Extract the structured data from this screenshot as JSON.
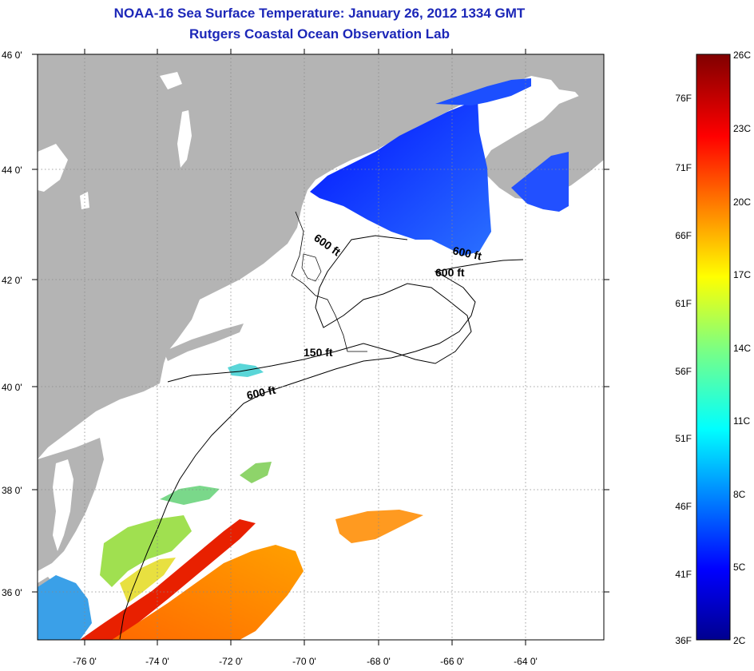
{
  "header": {
    "title": "NOAA-16 Sea Surface Temperature:  January 26, 2012 1334 GMT",
    "subtitle": "Rutgers Coastal Ocean Observation Lab"
  },
  "map": {
    "lat_labels": [
      "46 0'",
      "44 0'",
      "42 0'",
      "40 0'",
      "38 0'",
      "36 0'"
    ],
    "lon_labels": [
      "-76 0'",
      "-74 0'",
      "-72 0'",
      "-70 0'",
      "-68 0'",
      "-66 0'",
      "-64 0'"
    ],
    "contour_labels": {
      "c1": "600 ft",
      "c2": "600 ft",
      "c3": "600 ft",
      "c4": "150 ft",
      "c5": "600 ft"
    },
    "colors": {
      "land": "#b4b4b4",
      "ocean_nodata": "#ffffff",
      "grid": "#888888"
    }
  },
  "colorbar": {
    "celsius_labels": [
      "26C",
      "23C",
      "20C",
      "17C",
      "14C",
      "11C",
      "8C",
      "5C",
      "2C"
    ],
    "fahrenheit_labels": [
      "76F",
      "71F",
      "66F",
      "61F",
      "56F",
      "51F",
      "46F",
      "41F",
      "36F"
    ]
  }
}
